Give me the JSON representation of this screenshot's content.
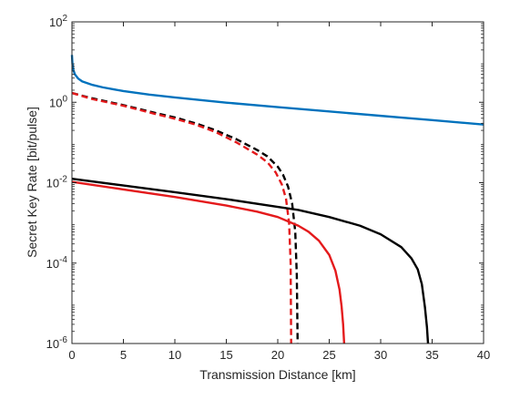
{
  "chart_data": {
    "type": "line",
    "title": "",
    "xlabel": "Transmission Distance [km]",
    "ylabel": "Secret Key Rate [bit/pulse]",
    "xlim": [
      0,
      40
    ],
    "ylim": [
      1e-06,
      100
    ],
    "yscale": "log",
    "grid": false,
    "legend": "none",
    "x_ticks": [
      0,
      5,
      10,
      15,
      20,
      25,
      30,
      35,
      40
    ],
    "x_tick_labels": [
      "0",
      "5",
      "10",
      "15",
      "20",
      "25",
      "30",
      "35",
      "40"
    ],
    "y_ticks": [
      1e-06,
      0.0001,
      0.01,
      1,
      100
    ],
    "y_tick_labels": [
      {
        "base": "10",
        "exp": "-6"
      },
      {
        "base": "10",
        "exp": "-4"
      },
      {
        "base": "10",
        "exp": "-2"
      },
      {
        "base": "10",
        "exp": "0"
      },
      {
        "base": "10",
        "exp": "2"
      }
    ],
    "series": [
      {
        "color": "#0072BD",
        "style": "solid",
        "x": [
          0,
          0.05,
          0.15,
          0.3,
          0.6,
          1,
          2,
          3,
          5,
          7.5,
          10,
          15,
          20,
          25,
          30,
          35,
          40
        ],
        "y": [
          15,
          9,
          6.2,
          4.9,
          3.9,
          3.3,
          2.7,
          2.35,
          1.9,
          1.55,
          1.32,
          0.98,
          0.76,
          0.59,
          0.46,
          0.36,
          0.28
        ]
      },
      {
        "color": "#000000",
        "style": "dashed",
        "x": [
          0,
          2,
          5,
          8,
          10,
          12,
          14,
          16,
          18,
          19,
          20,
          20.5,
          21,
          21.4,
          21.7,
          21.85,
          21.93
        ],
        "y": [
          1.7,
          1.25,
          0.85,
          0.55,
          0.42,
          0.3,
          0.2,
          0.12,
          0.065,
          0.045,
          0.025,
          0.016,
          0.008,
          0.003,
          0.0006,
          5e-05,
          1e-06
        ]
      },
      {
        "color": "#E41A1C",
        "style": "dashed",
        "x": [
          0,
          2,
          5,
          8,
          10,
          12,
          14,
          16,
          18,
          19,
          19.8,
          20.4,
          20.8,
          21.1,
          21.25,
          21.3
        ],
        "y": [
          1.7,
          1.2,
          0.82,
          0.52,
          0.39,
          0.28,
          0.18,
          0.1,
          0.05,
          0.032,
          0.018,
          0.009,
          0.004,
          0.001,
          0.0001,
          1e-06
        ]
      },
      {
        "color": "#000000",
        "style": "solid",
        "x": [
          0,
          5,
          10,
          15,
          20,
          22,
          25,
          28,
          30,
          32,
          33,
          33.6,
          34,
          34.3,
          34.5,
          34.6
        ],
        "y": [
          0.0125,
          0.0085,
          0.0058,
          0.0039,
          0.0025,
          0.0021,
          0.0014,
          0.00085,
          0.00052,
          0.00025,
          0.00013,
          7e-05,
          3e-05,
          8e-06,
          2.5e-06,
          1e-06
        ]
      },
      {
        "color": "#E41A1C",
        "style": "solid",
        "x": [
          0,
          5,
          10,
          15,
          18,
          20,
          22,
          23,
          24,
          25,
          25.6,
          26,
          26.2,
          26.35,
          26.45
        ],
        "y": [
          0.0105,
          0.0068,
          0.0044,
          0.0027,
          0.0019,
          0.0014,
          0.00085,
          0.0006,
          0.00036,
          0.00016,
          6.5e-05,
          2.2e-05,
          8.5e-06,
          3e-06,
          1e-06
        ]
      }
    ]
  }
}
